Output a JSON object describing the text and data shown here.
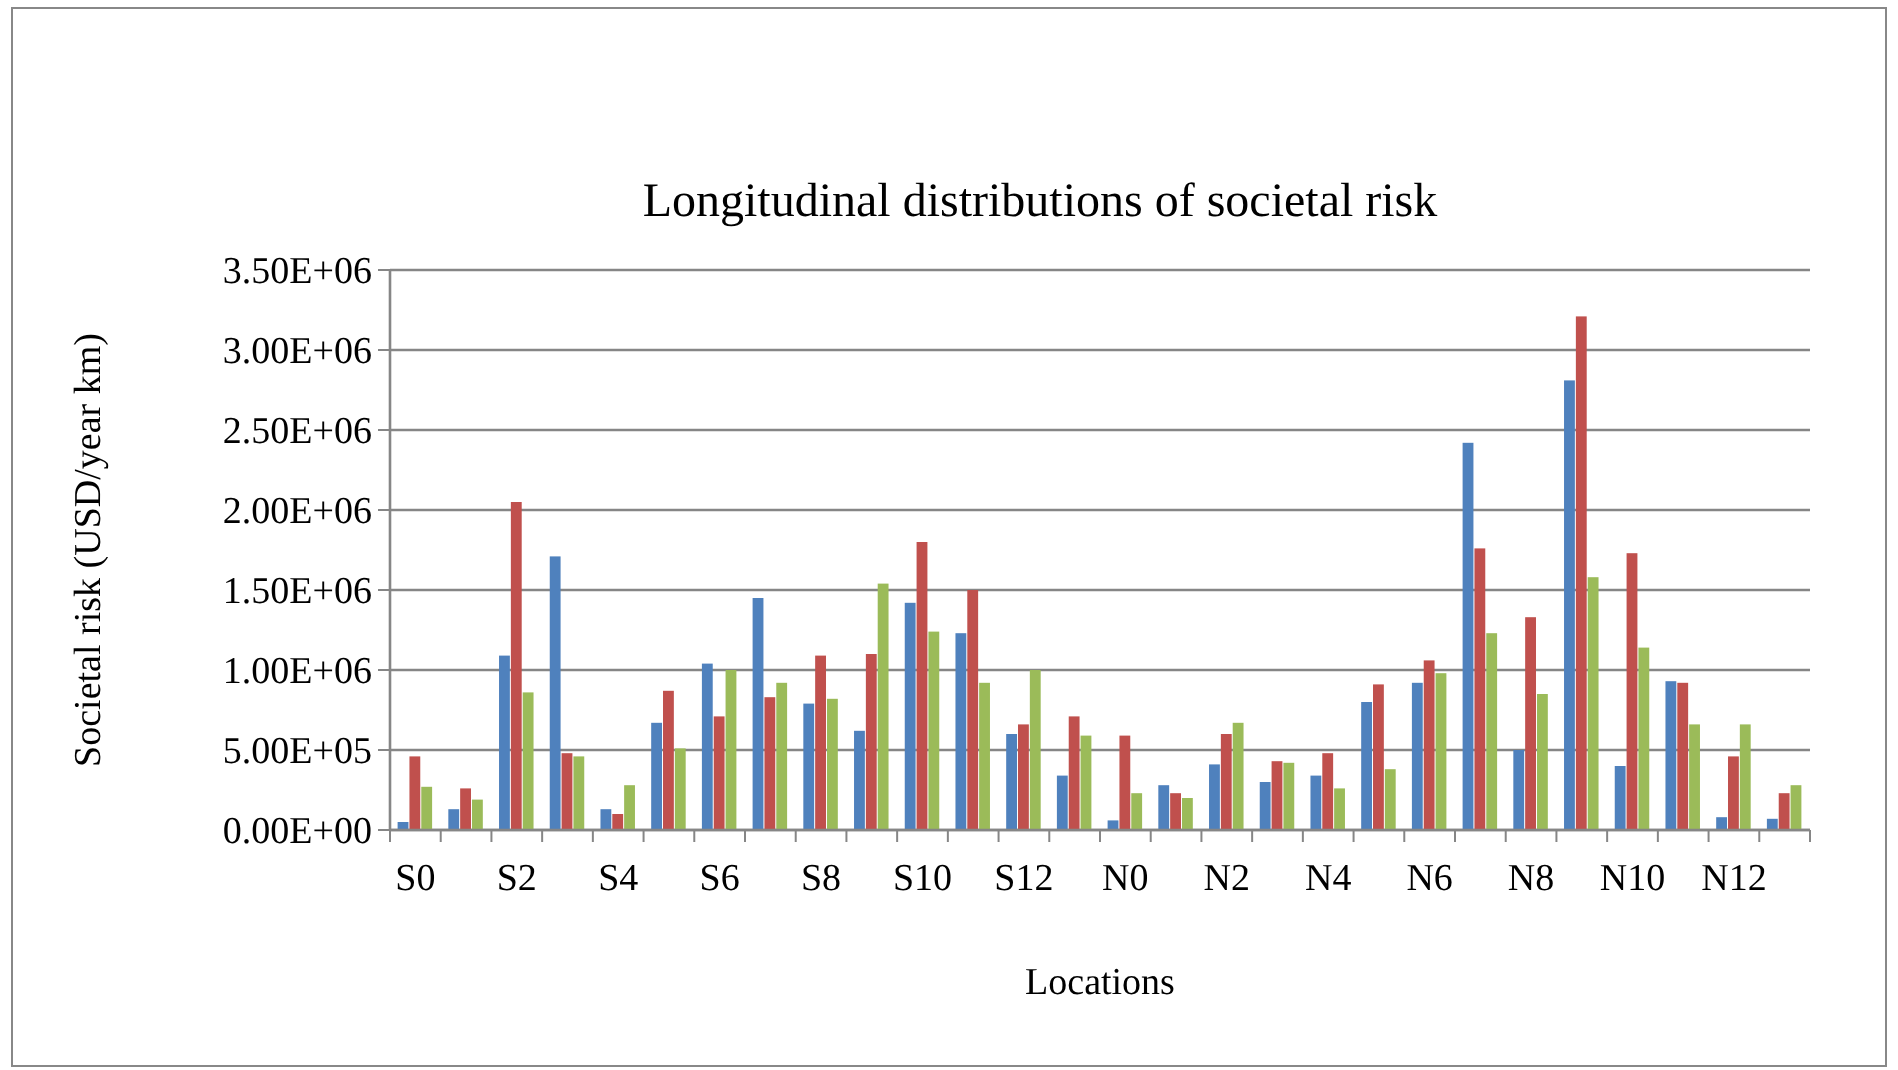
{
  "chart_data": {
    "type": "bar",
    "title": "Longitudinal distributions of societal risk",
    "xlabel": "Locations",
    "ylabel": "Societal risk (USD/year km)",
    "categories": [
      "S0",
      null,
      "S2",
      null,
      "S4",
      null,
      "S6",
      null,
      "S8",
      null,
      "S10",
      null,
      "S12",
      null,
      "N0",
      null,
      "N2",
      null,
      "N4",
      null,
      "N6",
      null,
      "N8",
      null,
      "N10",
      null,
      "N12",
      null
    ],
    "series": [
      {
        "color": "#4f81bd",
        "values": [
          50000,
          130000,
          1090000,
          1710000,
          130000,
          670000,
          1040000,
          1450000,
          790000,
          620000,
          1420000,
          1230000,
          600000,
          340000,
          60000,
          280000,
          410000,
          300000,
          340000,
          800000,
          920000,
          2420000,
          500000,
          2810000,
          400000,
          930000,
          80000,
          70000
        ]
      },
      {
        "color": "#c0504d",
        "values": [
          460000,
          260000,
          2050000,
          480000,
          100000,
          870000,
          710000,
          830000,
          1090000,
          1100000,
          1800000,
          1500000,
          660000,
          710000,
          590000,
          230000,
          600000,
          430000,
          480000,
          910000,
          1060000,
          1760000,
          1330000,
          3210000,
          1730000,
          920000,
          460000,
          230000
        ]
      },
      {
        "color": "#9bbb59",
        "values": [
          270000,
          190000,
          860000,
          460000,
          280000,
          510000,
          1000000,
          920000,
          820000,
          1540000,
          1240000,
          920000,
          1000000,
          590000,
          230000,
          200000,
          670000,
          420000,
          260000,
          380000,
          980000,
          1230000,
          850000,
          1580000,
          1140000,
          660000,
          660000,
          280000
        ]
      }
    ],
    "ylim": [
      0,
      3500000
    ],
    "yticks": [
      {
        "value": 0,
        "label": "0.00E+00"
      },
      {
        "value": 500000,
        "label": "5.00E+05"
      },
      {
        "value": 1000000,
        "label": "1.00E+06"
      },
      {
        "value": 1500000,
        "label": "1.50E+06"
      },
      {
        "value": 2000000,
        "label": "2.00E+06"
      },
      {
        "value": 2500000,
        "label": "2.50E+06"
      },
      {
        "value": 3000000,
        "label": "3.00E+06"
      },
      {
        "value": 3500000,
        "label": "3.50E+06"
      }
    ],
    "grid": "y"
  }
}
